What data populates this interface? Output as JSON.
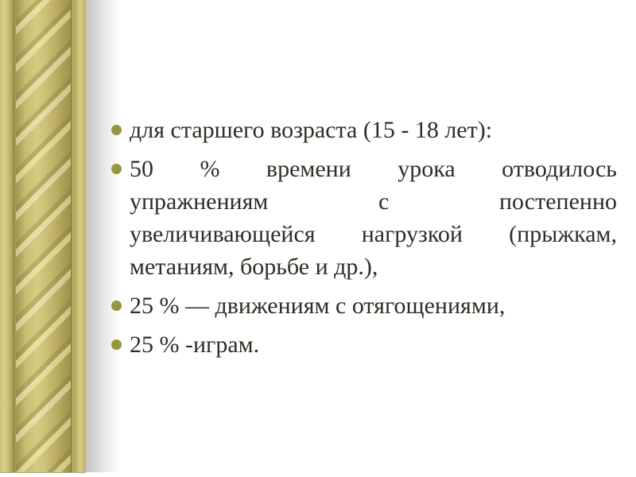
{
  "slide": {
    "bullets": [
      {
        "lines": [
          "для старшего возраста (15 - 18 лет):"
        ]
      },
      {
        "lines": [
          "50 % времени урока отводилось",
          "упражнениям с постепенно",
          "увеличивающейся нагрузкой (прыжкам,",
          "метаниям, борьбе и др.),"
        ]
      },
      {
        "lines": [
          "25 % — движениям с отягощениями,"
        ]
      },
      {
        "lines": [
          "25 % -играм."
        ]
      }
    ],
    "colors": {
      "background": "#ffffff",
      "text": "#2e2e24",
      "bullet": "#96963a",
      "border_gold_light": "#d8ce86",
      "border_gold_mid": "#c8bd72",
      "border_gold_dark": "#a1964e",
      "border_groove": "#8a8045",
      "border_shadow": "#c3c3c3"
    }
  }
}
